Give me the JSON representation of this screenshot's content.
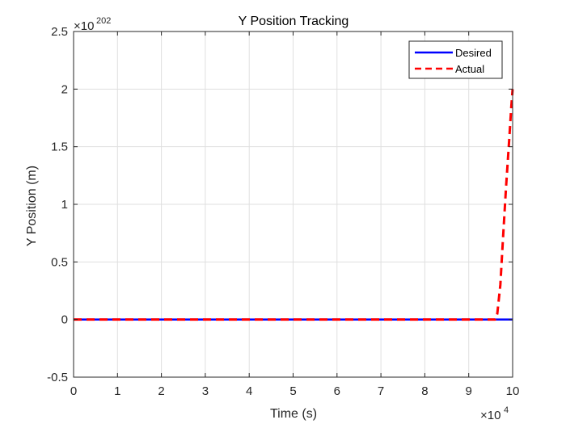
{
  "chart_data": {
    "type": "line",
    "title": "Y Position Tracking",
    "xlabel": "Time (s)",
    "ylabel": "Y Position (m)",
    "x_exponent": "4",
    "y_exponent": "202",
    "xlim": [
      0,
      10
    ],
    "ylim": [
      -0.5,
      2.5
    ],
    "x_ticks": [
      0,
      1,
      2,
      3,
      4,
      5,
      6,
      7,
      8,
      9,
      10
    ],
    "x_tick_labels": [
      "0",
      "1",
      "2",
      "3",
      "4",
      "5",
      "6",
      "7",
      "8",
      "9",
      "10"
    ],
    "y_ticks": [
      -0.5,
      0,
      0.5,
      1,
      1.5,
      2,
      2.5
    ],
    "y_tick_labels": [
      "-0.5",
      "0",
      "0.5",
      "1",
      "1.5",
      "2",
      "2.5"
    ],
    "grid": true,
    "legend_location": "top-right",
    "series": [
      {
        "name": "Desired",
        "color": "#0000ff",
        "style": "solid",
        "x": [
          0,
          10
        ],
        "y": [
          0,
          0
        ]
      },
      {
        "name": "Actual",
        "color": "#ff0000",
        "style": "dashed",
        "x": [
          0,
          9.6,
          9.65,
          9.72,
          9.78,
          9.85,
          9.92,
          9.97,
          10
        ],
        "y": [
          0,
          0,
          0.05,
          0.3,
          0.7,
          1.15,
          1.55,
          1.85,
          2.0
        ]
      }
    ]
  }
}
